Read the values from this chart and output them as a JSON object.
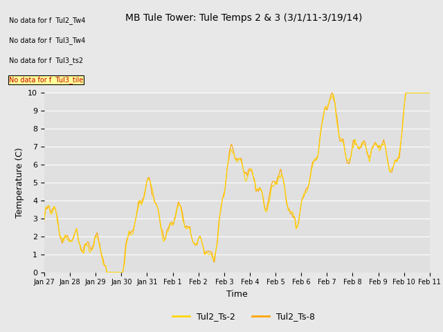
{
  "title": "MB Tule Tower: Tule Temps 2 & 3 (3/1/11-3/19/14)",
  "xlabel": "Time",
  "ylabel": "Temperature (C)",
  "ylim": [
    0.0,
    10.0
  ],
  "yticks": [
    0.0,
    1.0,
    2.0,
    3.0,
    4.0,
    5.0,
    6.0,
    7.0,
    8.0,
    9.0,
    10.0
  ],
  "fig_bg_color": "#e8e8e8",
  "plot_bg_color": "#e0e0e0",
  "line1_color": "#ffd700",
  "line2_color": "#ffa500",
  "legend_labels": [
    "Tul2_Ts-2",
    "Tul2_Ts-8"
  ],
  "no_data_texts": [
    "No data for f  Tul2_Tw4",
    "No data for f  Tul3_Tw4",
    "No data for f  Tul3_ts2",
    "No data for f  Tul3_tile"
  ],
  "xtick_labels": [
    "Jan 27",
    "Jan 28",
    "Jan 29",
    "Jan 30",
    "Jan 31",
    "Feb 1",
    "Feb 2",
    "Feb 3",
    "Feb 4",
    "Feb 5",
    "Feb 6",
    "Feb 7",
    "Feb 8",
    "Feb 9",
    "Feb 10",
    "Feb 11"
  ],
  "num_points": 2000,
  "title_fontsize": 10,
  "axis_label_fontsize": 9,
  "tick_fontsize": 8,
  "nodata_fontsize": 7,
  "legend_fontsize": 9
}
